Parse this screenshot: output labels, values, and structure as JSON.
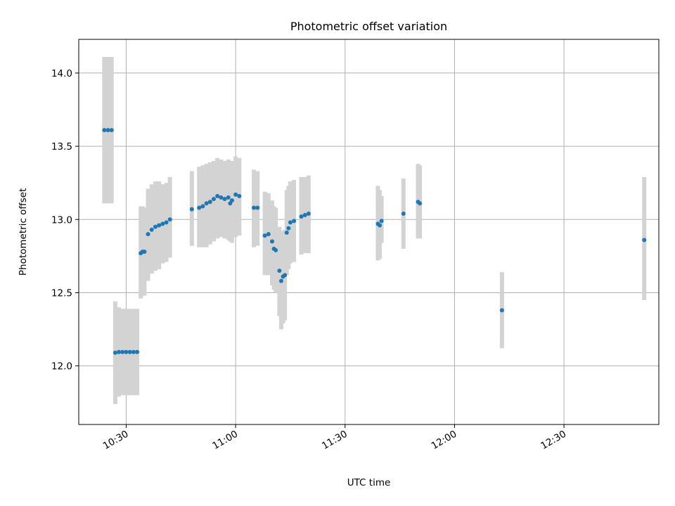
{
  "chart_data": {
    "type": "scatter",
    "title": "Photometric offset variation",
    "xlabel": "UTC time",
    "ylabel": "Photometric offset",
    "x_is_time": true,
    "xlim": [
      "10:17",
      "12:56"
    ],
    "ylim": [
      11.6,
      14.23
    ],
    "x_ticks": [
      "10:30",
      "11:00",
      "11:30",
      "12:00",
      "12:30"
    ],
    "y_ticks": [
      "12.0",
      "12.5",
      "13.0",
      "13.5",
      "14.0"
    ],
    "grid": true,
    "point_color": "#1f77b4",
    "errorbar_color": "#d3d3d3",
    "points": [
      {
        "x": "10:24",
        "y": 13.61,
        "lo": 13.11,
        "hi": 14.11
      },
      {
        "x": "10:25",
        "y": 13.61,
        "lo": 13.11,
        "hi": 14.11
      },
      {
        "x": "10:26",
        "y": 13.61,
        "lo": 13.11,
        "hi": 14.11
      },
      {
        "x": "10:27",
        "y": 12.09,
        "lo": 11.74,
        "hi": 12.44
      },
      {
        "x": "10:28",
        "y": 12.095,
        "lo": 11.79,
        "hi": 12.4
      },
      {
        "x": "10:29",
        "y": 12.095,
        "lo": 11.8,
        "hi": 12.39
      },
      {
        "x": "10:30",
        "y": 12.095,
        "lo": 11.8,
        "hi": 12.39
      },
      {
        "x": "10:31",
        "y": 12.095,
        "lo": 11.8,
        "hi": 12.39
      },
      {
        "x": "10:32",
        "y": 12.095,
        "lo": 11.8,
        "hi": 12.39
      },
      {
        "x": "10:33",
        "y": 12.095,
        "lo": 11.8,
        "hi": 12.39
      },
      {
        "x": "10:34",
        "y": 12.77,
        "lo": 12.46,
        "hi": 13.09
      },
      {
        "x": "10:34:30",
        "y": 12.78,
        "lo": 12.48,
        "hi": 13.09
      },
      {
        "x": "10:35",
        "y": 12.78,
        "lo": 12.48,
        "hi": 13.08
      },
      {
        "x": "10:36",
        "y": 12.9,
        "lo": 12.58,
        "hi": 13.21
      },
      {
        "x": "10:37",
        "y": 12.93,
        "lo": 12.63,
        "hi": 13.24
      },
      {
        "x": "10:38",
        "y": 12.95,
        "lo": 12.65,
        "hi": 13.26
      },
      {
        "x": "10:39",
        "y": 12.96,
        "lo": 12.66,
        "hi": 13.26
      },
      {
        "x": "10:40",
        "y": 12.97,
        "lo": 12.7,
        "hi": 13.24
      },
      {
        "x": "10:41",
        "y": 12.98,
        "lo": 12.71,
        "hi": 13.25
      },
      {
        "x": "10:42",
        "y": 13.0,
        "lo": 12.74,
        "hi": 13.29
      },
      {
        "x": "10:48",
        "y": 13.07,
        "lo": 12.82,
        "hi": 13.33
      },
      {
        "x": "10:50",
        "y": 13.08,
        "lo": 12.81,
        "hi": 13.36
      },
      {
        "x": "10:51",
        "y": 13.09,
        "lo": 12.81,
        "hi": 13.37
      },
      {
        "x": "10:52",
        "y": 13.11,
        "lo": 12.81,
        "hi": 13.38
      },
      {
        "x": "10:53",
        "y": 13.12,
        "lo": 12.83,
        "hi": 13.39
      },
      {
        "x": "10:54",
        "y": 13.14,
        "lo": 12.85,
        "hi": 13.4
      },
      {
        "x": "10:55",
        "y": 13.16,
        "lo": 12.87,
        "hi": 13.42
      },
      {
        "x": "10:56",
        "y": 13.15,
        "lo": 12.88,
        "hi": 13.41
      },
      {
        "x": "10:57",
        "y": 13.14,
        "lo": 12.87,
        "hi": 13.4
      },
      {
        "x": "10:58",
        "y": 13.15,
        "lo": 12.86,
        "hi": 13.41
      },
      {
        "x": "10:58:30",
        "y": 13.11,
        "lo": 12.85,
        "hi": 13.38
      },
      {
        "x": "10:59",
        "y": 13.13,
        "lo": 12.84,
        "hi": 13.4
      },
      {
        "x": "11:00",
        "y": 13.17,
        "lo": 12.88,
        "hi": 13.43
      },
      {
        "x": "11:01",
        "y": 13.16,
        "lo": 12.89,
        "hi": 13.42
      },
      {
        "x": "11:05",
        "y": 13.08,
        "lo": 12.81,
        "hi": 13.34
      },
      {
        "x": "11:06",
        "y": 13.08,
        "lo": 12.82,
        "hi": 13.33
      },
      {
        "x": "11:08",
        "y": 12.89,
        "lo": 12.62,
        "hi": 13.19
      },
      {
        "x": "11:09",
        "y": 12.9,
        "lo": 12.62,
        "hi": 13.18
      },
      {
        "x": "11:10",
        "y": 12.85,
        "lo": 12.55,
        "hi": 13.13
      },
      {
        "x": "11:10:30",
        "y": 12.8,
        "lo": 12.52,
        "hi": 13.09
      },
      {
        "x": "11:11",
        "y": 12.79,
        "lo": 12.5,
        "hi": 13.08
      },
      {
        "x": "11:12",
        "y": 12.65,
        "lo": 12.34,
        "hi": 12.95
      },
      {
        "x": "11:12:30",
        "y": 12.58,
        "lo": 12.25,
        "hi": 12.9
      },
      {
        "x": "11:13",
        "y": 12.61,
        "lo": 12.29,
        "hi": 12.92
      },
      {
        "x": "11:13:30",
        "y": 12.62,
        "lo": 12.31,
        "hi": 12.93
      },
      {
        "x": "11:14",
        "y": 12.91,
        "lo": 12.62,
        "hi": 13.2
      },
      {
        "x": "11:14:30",
        "y": 12.94,
        "lo": 12.66,
        "hi": 13.23
      },
      {
        "x": "11:15",
        "y": 12.98,
        "lo": 12.7,
        "hi": 13.26
      },
      {
        "x": "11:16",
        "y": 12.99,
        "lo": 12.71,
        "hi": 13.27
      },
      {
        "x": "11:18",
        "y": 13.02,
        "lo": 12.76,
        "hi": 13.29
      },
      {
        "x": "11:19",
        "y": 13.03,
        "lo": 12.77,
        "hi": 13.29
      },
      {
        "x": "11:20",
        "y": 13.04,
        "lo": 12.77,
        "hi": 13.3
      },
      {
        "x": "11:39",
        "y": 12.97,
        "lo": 12.72,
        "hi": 13.23
      },
      {
        "x": "11:39:30",
        "y": 12.96,
        "lo": 12.73,
        "hi": 13.2
      },
      {
        "x": "11:40",
        "y": 12.99,
        "lo": 12.84,
        "hi": 13.16
      },
      {
        "x": "11:46",
        "y": 13.04,
        "lo": 12.8,
        "hi": 13.28
      },
      {
        "x": "11:50",
        "y": 13.12,
        "lo": 12.87,
        "hi": 13.38
      },
      {
        "x": "11:50:30",
        "y": 13.11,
        "lo": 12.87,
        "hi": 13.37
      },
      {
        "x": "12:13",
        "y": 12.38,
        "lo": 12.12,
        "hi": 12.64
      },
      {
        "x": "12:52",
        "y": 12.86,
        "lo": 12.45,
        "hi": 13.29
      }
    ]
  }
}
